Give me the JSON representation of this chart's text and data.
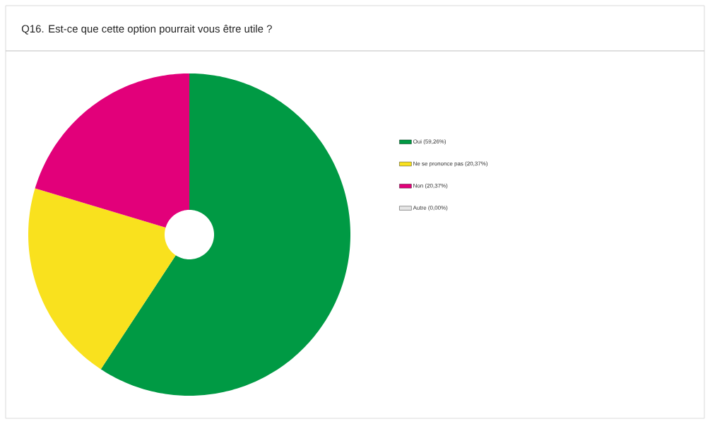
{
  "chart_data": {
    "type": "donut",
    "title": "Q16.  Est-ce que cette option pourrait vous être utile ?",
    "categories": [
      "Oui (59,26%)",
      "Ne se prononce pas (20,37%)",
      "Non (20,37%)",
      "Autre (0,00%)"
    ],
    "values": [
      59.26,
      20.37,
      20.37,
      0
    ],
    "colors": [
      "#009a44",
      "#f9e11e",
      "#e2007a",
      "#e6e6e6"
    ],
    "legend": "right"
  }
}
